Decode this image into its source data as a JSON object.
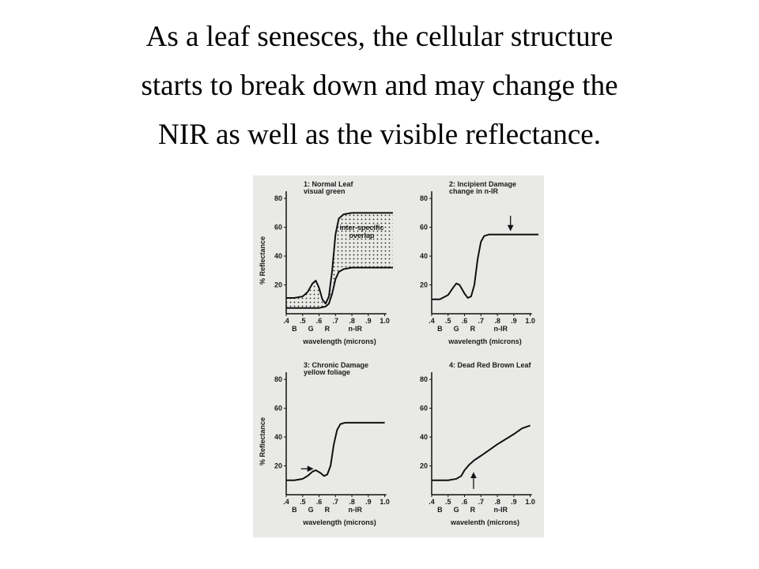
{
  "title": [
    "As a leaf senesces, the cellular structure",
    "starts to break down and may change the",
    "NIR as well as the visible reflectance."
  ],
  "chart_data": [
    {
      "type": "line",
      "title": [
        "1: Normal Leaf",
        "visual green"
      ],
      "ylabel": "% Reflectance",
      "xlabel": "wavelength (microns)",
      "band_labels": [
        "B",
        "G",
        "R",
        "n-IR"
      ],
      "annotation": [
        "inter-specific",
        "overlap"
      ],
      "xlim": [
        0.4,
        1.05
      ],
      "ylim": [
        0,
        85
      ],
      "xticks": [
        {
          "value": 0.4,
          "label": ".4"
        },
        {
          "value": 0.5,
          "label": ".5"
        },
        {
          "value": 0.6,
          "label": ".6"
        },
        {
          "value": 0.7,
          "label": ".7"
        },
        {
          "value": 0.8,
          "label": ".8"
        },
        {
          "value": 0.9,
          "label": ".9"
        },
        {
          "value": 1.0,
          "label": "1.0"
        }
      ],
      "yticks": [
        20,
        40,
        60,
        80
      ],
      "series": [
        {
          "color": "#111111",
          "x": [
            0.4,
            0.45,
            0.5,
            0.53,
            0.56,
            0.58,
            0.6,
            0.62,
            0.64,
            0.66,
            0.68,
            0.7,
            0.72,
            0.75,
            0.8,
            0.9,
            1.0,
            1.05
          ],
          "values": [
            11,
            11,
            12,
            15,
            21,
            23,
            18,
            10,
            7,
            12,
            30,
            55,
            66,
            69,
            70,
            70,
            70,
            70
          ]
        },
        {
          "color": "#111111",
          "x": [
            0.4,
            0.5,
            0.6,
            0.64,
            0.66,
            0.68,
            0.7,
            0.72,
            0.75,
            0.8,
            1.0,
            1.05
          ],
          "values": [
            4,
            4,
            4,
            5,
            7,
            14,
            24,
            29,
            31,
            32,
            32,
            32
          ]
        }
      ]
    },
    {
      "type": "line",
      "title": [
        "2: Incipient Damage",
        "change in n-IR"
      ],
      "xlabel": "wavelength (microns)",
      "band_labels": [
        "B",
        "G",
        "R",
        "n-IR"
      ],
      "xlim": [
        0.4,
        1.05
      ],
      "ylim": [
        0,
        85
      ],
      "xticks": [
        {
          "value": 0.4,
          "label": ".4"
        },
        {
          "value": 0.5,
          "label": ".5"
        },
        {
          "value": 0.6,
          "label": ".6"
        },
        {
          "value": 0.7,
          "label": ".7"
        },
        {
          "value": 0.8,
          "label": ".8"
        },
        {
          "value": 0.9,
          "label": ".9"
        },
        {
          "value": 1.0,
          "label": "1.0"
        }
      ],
      "yticks": [
        20,
        40,
        60,
        80
      ],
      "series": [
        {
          "color": "#111111",
          "x": [
            0.4,
            0.45,
            0.5,
            0.53,
            0.55,
            0.57,
            0.6,
            0.62,
            0.64,
            0.66,
            0.68,
            0.7,
            0.72,
            0.75,
            0.8,
            0.9,
            1.0,
            1.05
          ],
          "values": [
            10,
            10,
            13,
            18,
            21,
            20,
            14,
            11,
            12,
            20,
            38,
            50,
            54,
            55,
            55,
            55,
            55,
            55
          ]
        }
      ]
    },
    {
      "type": "line",
      "title": [
        "3: Chronic Damage",
        "yellow foliage"
      ],
      "ylabel": "% Reflectance",
      "xlabel": "wavelength (microns)",
      "band_labels": [
        "B",
        "G",
        "R",
        "n-IR"
      ],
      "xlim": [
        0.4,
        1.05
      ],
      "ylim": [
        0,
        85
      ],
      "xticks": [
        {
          "value": 0.4,
          "label": ".4"
        },
        {
          "value": 0.5,
          "label": ".5"
        },
        {
          "value": 0.6,
          "label": ".6"
        },
        {
          "value": 0.7,
          "label": ".7"
        },
        {
          "value": 0.8,
          "label": ".8"
        },
        {
          "value": 0.9,
          "label": ".9"
        },
        {
          "value": 1.0,
          "label": "1.0"
        }
      ],
      "yticks": [
        20,
        40,
        60,
        80
      ],
      "series": [
        {
          "color": "#111111",
          "x": [
            0.4,
            0.45,
            0.5,
            0.53,
            0.56,
            0.58,
            0.61,
            0.63,
            0.65,
            0.67,
            0.69,
            0.71,
            0.73,
            0.76,
            0.8,
            0.9,
            1.0
          ],
          "values": [
            10,
            10,
            11,
            13,
            16,
            17,
            15,
            13,
            14,
            20,
            35,
            45,
            49,
            50,
            50,
            50,
            50
          ]
        }
      ]
    },
    {
      "type": "line",
      "title": [
        "4: Dead Red Brown Leaf"
      ],
      "xlabel": "wavelenth (microns)",
      "band_labels": [
        "B",
        "G",
        "R",
        "n-IR"
      ],
      "xlim": [
        0.4,
        1.05
      ],
      "ylim": [
        0,
        85
      ],
      "xticks": [
        {
          "value": 0.4,
          "label": ".4"
        },
        {
          "value": 0.5,
          "label": ".5"
        },
        {
          "value": 0.6,
          "label": ".6"
        },
        {
          "value": 0.7,
          "label": ".7"
        },
        {
          "value": 0.8,
          "label": ".8"
        },
        {
          "value": 0.9,
          "label": ".9"
        },
        {
          "value": 1.0,
          "label": "1.0"
        }
      ],
      "yticks": [
        20,
        40,
        60,
        80
      ],
      "series": [
        {
          "color": "#111111",
          "x": [
            0.4,
            0.45,
            0.5,
            0.55,
            0.58,
            0.6,
            0.63,
            0.66,
            0.7,
            0.8,
            0.9,
            0.95,
            1.0
          ],
          "values": [
            10,
            10,
            10,
            11,
            13,
            17,
            21,
            24,
            27,
            35,
            42,
            46,
            48
          ]
        }
      ]
    }
  ]
}
